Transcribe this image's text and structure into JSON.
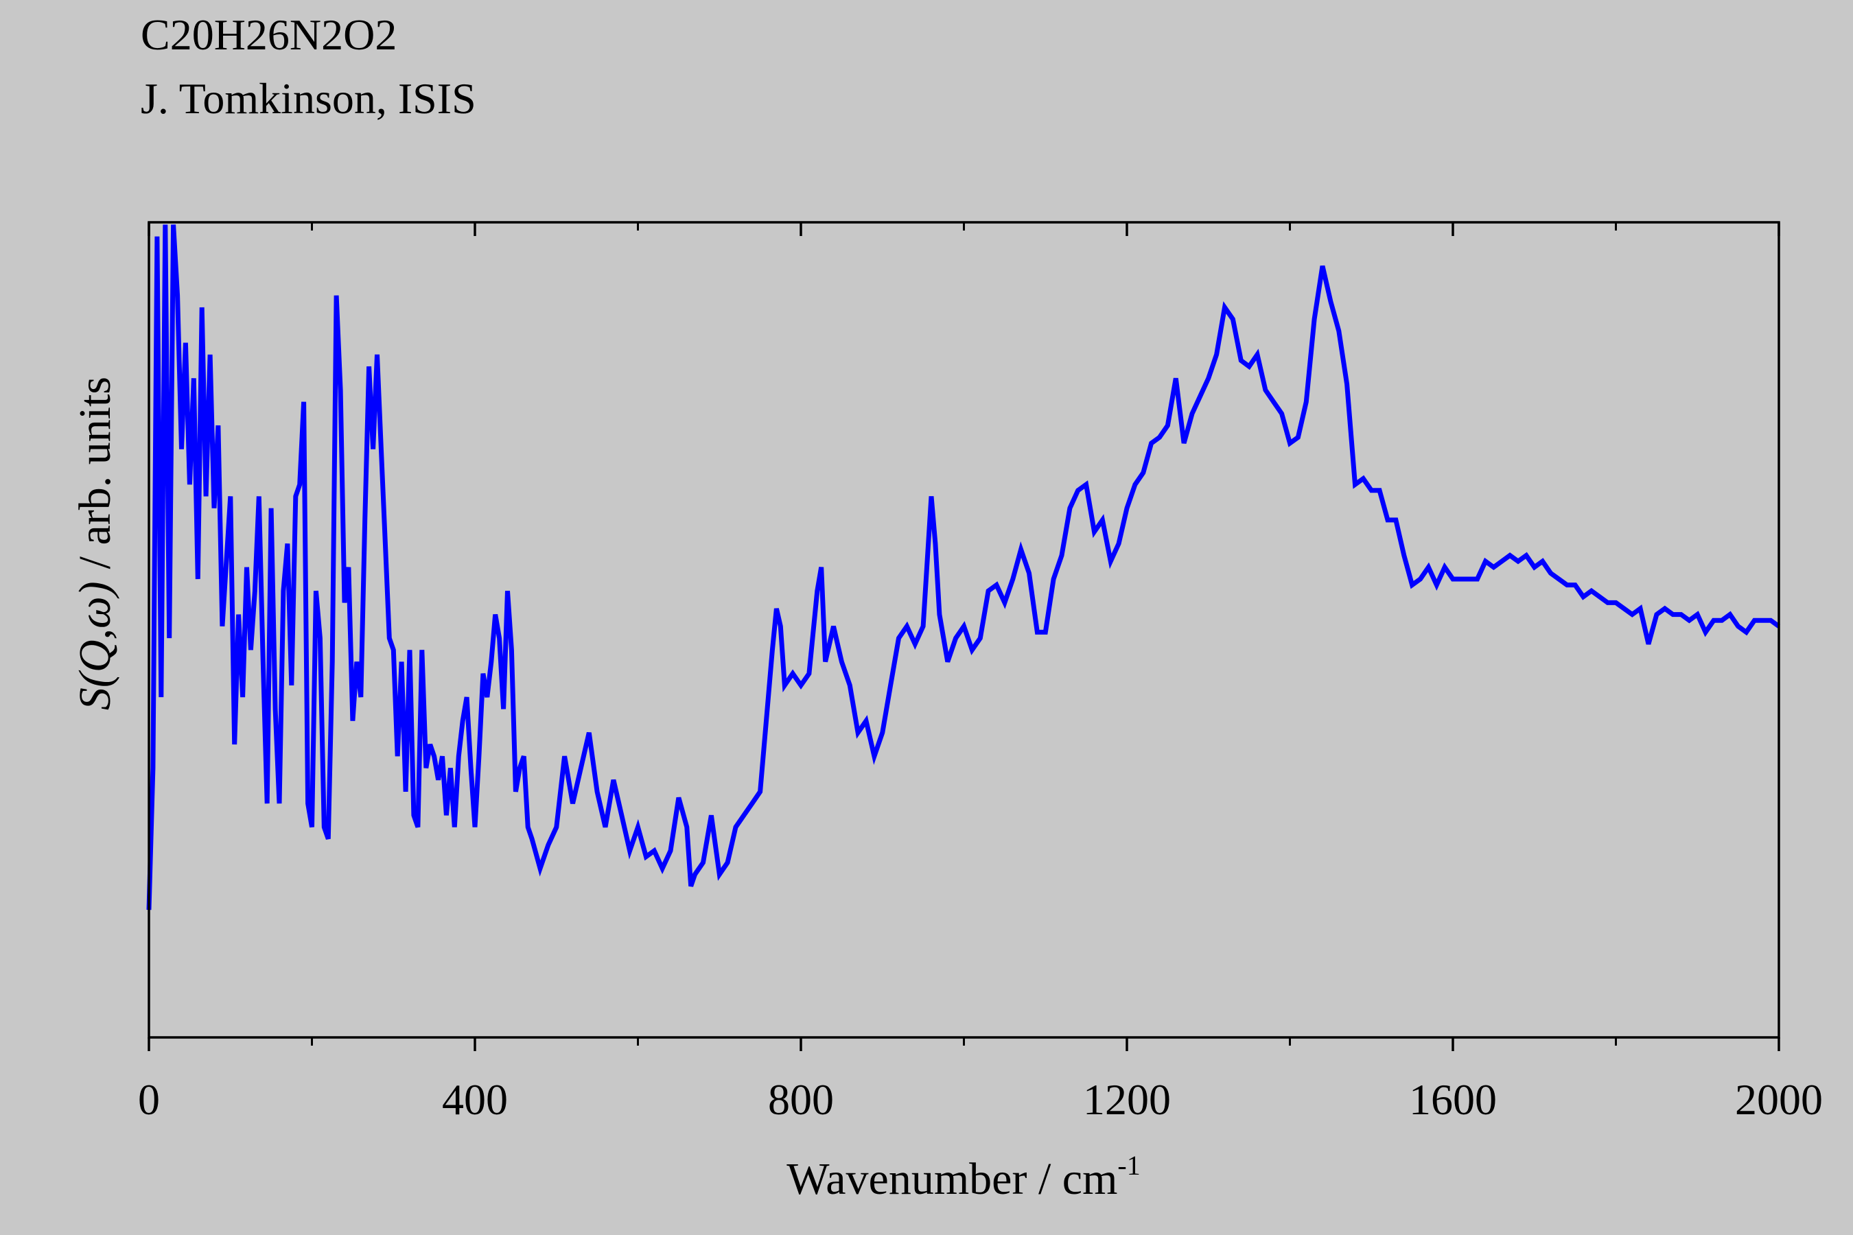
{
  "chart_data": {
    "type": "line",
    "title": "C20H26N2O2",
    "subtitle": "J. Tomkinson, ISIS",
    "x_label": "Wavenumber / cm",
    "x_label_superscript": "-1",
    "y_label_symbol": "S(Q,ω)",
    "y_label": "/ arb. units",
    "color": "#0000ff",
    "xlim": [
      0,
      2000
    ],
    "xticks": [
      0,
      400,
      800,
      1200,
      1600,
      2000
    ],
    "xminor_ticks": [
      200,
      600,
      1000,
      1400,
      1800
    ],
    "ylim": [
      0,
      690
    ],
    "x": [
      0,
      5,
      10,
      15,
      20,
      25,
      30,
      35,
      40,
      45,
      50,
      55,
      60,
      65,
      70,
      75,
      80,
      85,
      90,
      100,
      105,
      110,
      115,
      120,
      125,
      130,
      135,
      140,
      145,
      150,
      155,
      160,
      165,
      170,
      175,
      180,
      185,
      190,
      195,
      200,
      205,
      210,
      215,
      220,
      225,
      230,
      235,
      240,
      245,
      250,
      255,
      260,
      265,
      270,
      275,
      280,
      285,
      290,
      295,
      300,
      305,
      310,
      315,
      320,
      325,
      330,
      335,
      340,
      345,
      350,
      355,
      360,
      365,
      370,
      375,
      380,
      385,
      390,
      395,
      400,
      405,
      410,
      415,
      420,
      425,
      430,
      435,
      440,
      445,
      450,
      455,
      460,
      465,
      470,
      480,
      490,
      500,
      510,
      520,
      530,
      540,
      550,
      560,
      570,
      580,
      590,
      600,
      610,
      620,
      630,
      640,
      650,
      660,
      665,
      670,
      680,
      690,
      700,
      710,
      720,
      730,
      740,
      750,
      760,
      765,
      770,
      775,
      780,
      790,
      800,
      810,
      820,
      825,
      830,
      840,
      845,
      850,
      860,
      870,
      880,
      890,
      900,
      910,
      920,
      930,
      940,
      950,
      960,
      965,
      970,
      980,
      990,
      1000,
      1010,
      1020,
      1030,
      1040,
      1050,
      1060,
      1070,
      1080,
      1090,
      1100,
      1110,
      1120,
      1130,
      1140,
      1150,
      1160,
      1170,
      1180,
      1190,
      1200,
      1210,
      1220,
      1230,
      1240,
      1250,
      1260,
      1270,
      1280,
      1290,
      1300,
      1310,
      1320,
      1330,
      1340,
      1350,
      1360,
      1370,
      1380,
      1390,
      1400,
      1410,
      1420,
      1430,
      1440,
      1450,
      1460,
      1470,
      1480,
      1490,
      1500,
      1510,
      1520,
      1530,
      1540,
      1550,
      1560,
      1570,
      1580,
      1590,
      1600,
      1610,
      1620,
      1630,
      1640,
      1650,
      1660,
      1670,
      1680,
      1690,
      1700,
      1710,
      1720,
      1730,
      1740,
      1750,
      1760,
      1770,
      1780,
      1790,
      1800,
      1810,
      1820,
      1830,
      1840,
      1850,
      1860,
      1870,
      1880,
      1890,
      1900,
      1910,
      1920,
      1930,
      1940,
      1950,
      1960,
      1970,
      1980,
      1990,
      2000
    ],
    "values": [
      108,
      228,
      678,
      288,
      688,
      338,
      688,
      628,
      498,
      588,
      468,
      558,
      388,
      618,
      458,
      578,
      448,
      518,
      348,
      458,
      248,
      358,
      288,
      398,
      328,
      378,
      458,
      318,
      198,
      448,
      278,
      198,
      378,
      418,
      298,
      458,
      468,
      538,
      198,
      178,
      378,
      338,
      178,
      168,
      318,
      628,
      548,
      368,
      398,
      268,
      318,
      288,
      438,
      568,
      498,
      578,
      498,
      418,
      338,
      328,
      238,
      318,
      208,
      328,
      188,
      178,
      328,
      228,
      248,
      238,
      218,
      238,
      188,
      228,
      178,
      238,
      268,
      288,
      228,
      178,
      238,
      308,
      288,
      318,
      358,
      338,
      278,
      378,
      328,
      208,
      228,
      238,
      178,
      168,
      143,
      163,
      178,
      238,
      198,
      228,
      258,
      208,
      178,
      218,
      188,
      158,
      178,
      153,
      158,
      143,
      158,
      203,
      178,
      128,
      138,
      148,
      188,
      138,
      148,
      178,
      188,
      198,
      208,
      288,
      328,
      363,
      348,
      298,
      308,
      298,
      308,
      378,
      398,
      318,
      348,
      333,
      318,
      298,
      258,
      268,
      238,
      258,
      298,
      338,
      348,
      333,
      348,
      458,
      418,
      358,
      318,
      338,
      348,
      328,
      338,
      378,
      383,
      368,
      388,
      413,
      393,
      343,
      343,
      388,
      408,
      448,
      463,
      468,
      428,
      438,
      403,
      418,
      448,
      468,
      478,
      503,
      508,
      518,
      558,
      503,
      528,
      543,
      558,
      578,
      618,
      608,
      573,
      568,
      578,
      548,
      538,
      528,
      503,
      508,
      538,
      608,
      653,
      623,
      598,
      553,
      468,
      473,
      463,
      463,
      438,
      438,
      408,
      383,
      388,
      398,
      383,
      398,
      388,
      388,
      388,
      388,
      403,
      398,
      403,
      408,
      403,
      408,
      398,
      403,
      393,
      388,
      383,
      383,
      373,
      378,
      373,
      368,
      368,
      363,
      358,
      363,
      333,
      358,
      363,
      358,
      358,
      353,
      358,
      343,
      353,
      353,
      358,
      348,
      343,
      353,
      353,
      353,
      348
    ]
  }
}
